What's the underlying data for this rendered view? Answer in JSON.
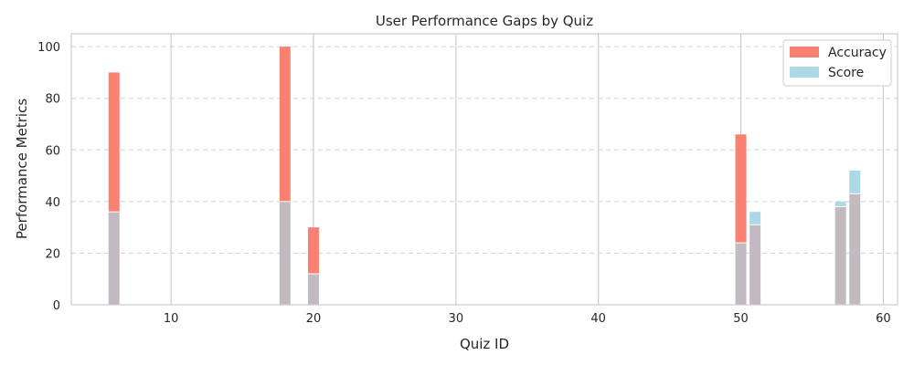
{
  "chart_data": {
    "type": "bar",
    "title": "User Performance Gaps by Quiz",
    "xlabel": "Quiz ID",
    "ylabel": "Performance Metrics",
    "xlim": [
      3,
      61
    ],
    "ylim": [
      0,
      105
    ],
    "xticks": [
      10,
      20,
      30,
      40,
      50,
      60
    ],
    "yticks": [
      0,
      20,
      40,
      60,
      80,
      100
    ],
    "grid": {
      "x": "solid",
      "y": "dashed"
    },
    "legend": "top-right",
    "x": [
      6,
      18,
      20,
      50,
      51,
      57,
      58
    ],
    "series": [
      {
        "name": "Accuracy",
        "color": "#fa8072",
        "values": [
          90,
          100,
          30,
          66,
          31,
          38,
          43
        ]
      },
      {
        "name": "Score",
        "color": "#add8e6",
        "values": [
          36,
          40,
          12,
          24,
          36,
          40,
          52
        ]
      }
    ],
    "overlap_color": "#c3b9c0"
  }
}
